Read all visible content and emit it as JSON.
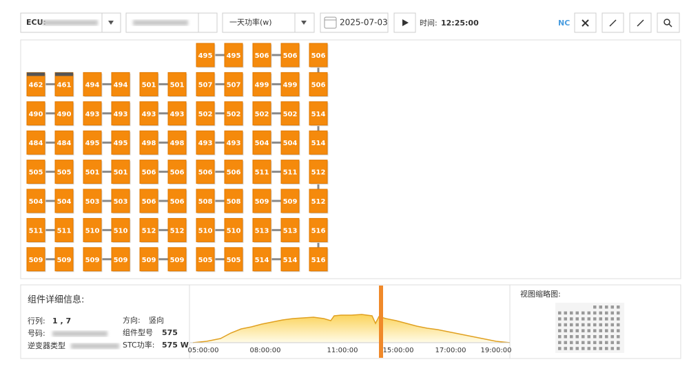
{
  "toolbar": {
    "ecu_label": "ECU:",
    "power_select": "一天功率(w)",
    "date": "2025-07-03",
    "time_label": "时间:",
    "time": "12:25:00",
    "nc": "NC"
  },
  "panel_grid": {
    "rows": [
      [
        null,
        null,
        null,
        null,
        null,
        null,
        495,
        495,
        506,
        506,
        506
      ],
      [
        462,
        461,
        494,
        494,
        501,
        501,
        507,
        507,
        499,
        499,
        506
      ],
      [
        490,
        490,
        493,
        493,
        493,
        493,
        502,
        502,
        502,
        502,
        514
      ],
      [
        484,
        484,
        495,
        495,
        498,
        498,
        493,
        493,
        504,
        504,
        514
      ],
      [
        505,
        505,
        501,
        501,
        506,
        506,
        506,
        506,
        511,
        511,
        512
      ],
      [
        504,
        504,
        503,
        503,
        506,
        506,
        508,
        508,
        509,
        509,
        512
      ],
      [
        511,
        511,
        510,
        510,
        512,
        512,
        510,
        510,
        513,
        513,
        516
      ],
      [
        509,
        509,
        509,
        509,
        509,
        509,
        505,
        505,
        514,
        514,
        516
      ]
    ]
  },
  "details": {
    "title": "组件详细信息:",
    "row_col_label": "行列:",
    "row_col": "1 , 7",
    "direction_label": "方向:",
    "direction": "竖向",
    "number_label": "号码:",
    "model_label": "组件型号",
    "model": 575,
    "inverter_label": "逆变器类型",
    "stc_label": "STC功率:",
    "stc": "575 W"
  },
  "power_chart": {
    "xticks": [
      "05:00:00",
      "08:00:00",
      "11:00:00",
      "15:00:00",
      "17:00:00",
      "19:00:00"
    ]
  },
  "thumbnail": {
    "title": "视图缩略图:"
  }
}
